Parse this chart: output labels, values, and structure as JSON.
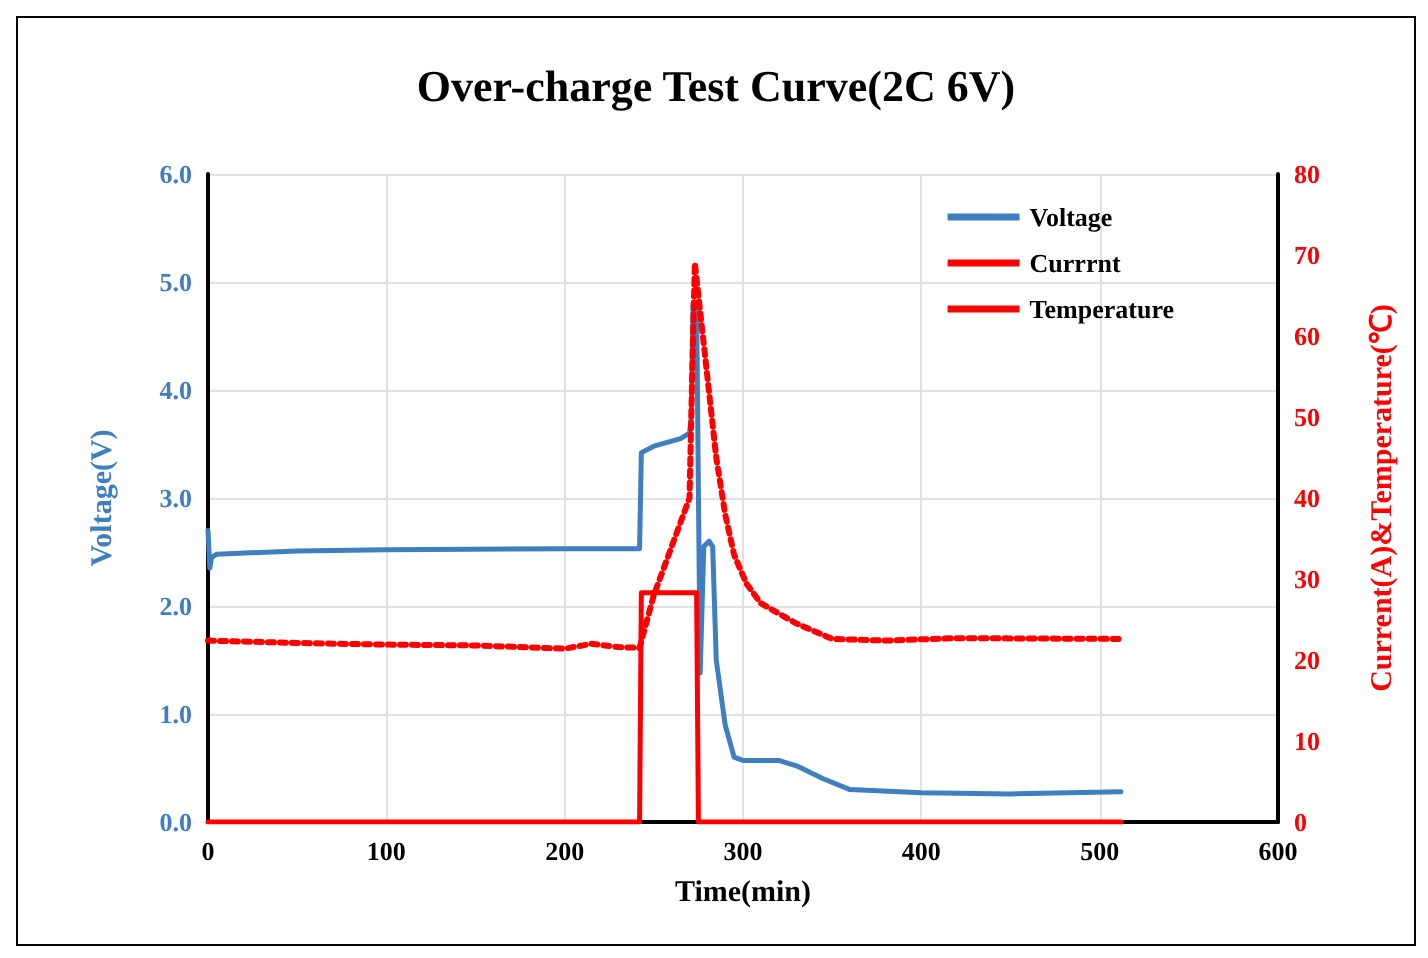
{
  "chart_data": {
    "type": "line",
    "title": "Over-charge Test Curve(2C 6V)",
    "xlabel": "Time(min)",
    "ylabel": "Voltage(V)",
    "y2label": "Current(A)&Temperature(℃)",
    "xlim": [
      0,
      600
    ],
    "xticks": [
      0,
      100,
      200,
      300,
      400,
      500,
      600
    ],
    "ylim": [
      0,
      6
    ],
    "yticks": [
      {
        "value": 0,
        "label": "0.0"
      },
      {
        "value": 1,
        "label": "1.0"
      },
      {
        "value": 2,
        "label": "2.0"
      },
      {
        "value": 3,
        "label": "3.0"
      },
      {
        "value": 4,
        "label": "4.0"
      },
      {
        "value": 5,
        "label": "5.0"
      },
      {
        "value": 6,
        "label": "6.0"
      }
    ],
    "y2lim": [
      0,
      80
    ],
    "y2ticks": [
      0,
      10,
      20,
      30,
      40,
      50,
      60,
      70,
      80
    ],
    "grid": true,
    "legend": "top right",
    "marker": "none",
    "series": [
      {
        "name": "Voltage",
        "color": "#3f7fbf",
        "line_style": "solid",
        "x": [
          0,
          1,
          2,
          5,
          50,
          100,
          200,
          242,
          243,
          250,
          265,
          270,
          271,
          272,
          274,
          275,
          276,
          278,
          281,
          283,
          285,
          290,
          295,
          300,
          320,
          330,
          345,
          360,
          400,
          450,
          512
        ],
        "values": [
          2.7,
          2.35,
          2.45,
          2.48,
          2.51,
          2.52,
          2.53,
          2.53,
          3.42,
          3.48,
          3.55,
          3.6,
          3.75,
          4.8,
          4.8,
          3.05,
          1.38,
          2.55,
          2.6,
          2.55,
          1.5,
          0.9,
          0.6,
          0.57,
          0.57,
          0.52,
          0.4,
          0.3,
          0.27,
          0.26,
          0.28
        ]
      },
      {
        "name": "Currrnt",
        "color": "#ff0000",
        "line_style": "solid",
        "axis": "y2",
        "x": [
          0,
          242,
          243,
          274,
          275,
          512
        ],
        "values": [
          0,
          0,
          28.3,
          28.3,
          0,
          0
        ]
      },
      {
        "name": "Temperature",
        "color": "#ff0000",
        "line_style": "dotted",
        "axis": "y2",
        "x": [
          0,
          50,
          100,
          150,
          200,
          215,
          230,
          242,
          250,
          260,
          270,
          272,
          273,
          280,
          285,
          290,
          295,
          302,
          310,
          330,
          350,
          380,
          420,
          512
        ],
        "values": [
          22.4,
          22.1,
          21.9,
          21.8,
          21.4,
          22.0,
          21.6,
          21.5,
          28,
          34,
          40,
          60,
          69,
          55,
          45,
          38,
          33,
          29.4,
          27,
          24.5,
          22.6,
          22.4,
          22.7,
          22.6
        ]
      }
    ]
  }
}
